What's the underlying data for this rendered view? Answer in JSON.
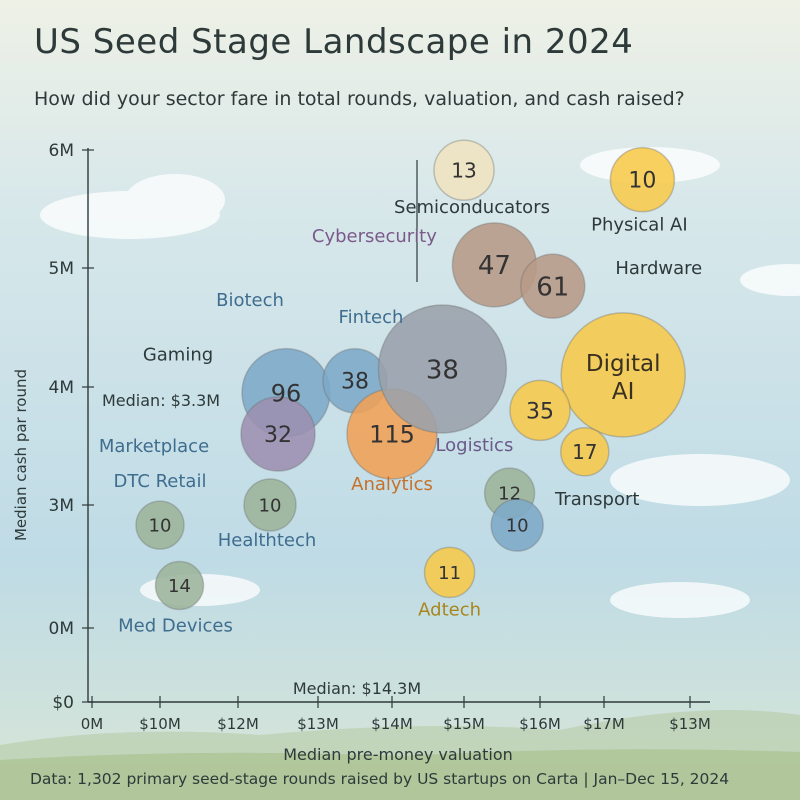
{
  "title": "US Seed Stage Landscape in  2024",
  "subtitle": "How did your sector fare in total rounds, valuation, and cash raised?",
  "footer": "Data: 1,302 primary seed-stage rounds raised by US startups on Carta | Jan–Dec 15, 2024",
  "chart_data": {
    "type": "scatter",
    "xlabel": "Median pre-money valuation",
    "ylabel": "Median cash par round",
    "x_ticks": [
      "0M",
      "$10M",
      "$12M",
      "$13M",
      "$14M",
      "$15M",
      "$16M",
      "$17M",
      "$13M"
    ],
    "y_ticks": [
      "$0",
      "0M",
      "3M",
      "4M",
      "5M",
      "6M"
    ],
    "median_x_label": "Median: $14.3M",
    "median_y_label": "Median: $3.3M",
    "colors": {
      "blue": "#7da8c8",
      "purple": "#9c8fb0",
      "orange": "#f0a055",
      "yellow": "#f7c94a",
      "green": "#9cb49a",
      "brown": "#b79a86",
      "gray": "#9aa0ab",
      "sand": "#efe3bf"
    },
    "points": [
      {
        "name": "Gaming",
        "count": "96",
        "x": 12.6,
        "y": 3.95,
        "color": "blue"
      },
      {
        "name": "Fintech",
        "count": "38",
        "x": 13.5,
        "y": 4.05,
        "color": "blue"
      },
      {
        "name": "Marketplace",
        "count": "32",
        "x": 12.5,
        "y": 3.6,
        "color": "purple"
      },
      {
        "name": "Analytics",
        "count": "115",
        "x": 14.0,
        "y": 3.6,
        "color": "orange"
      },
      {
        "name": "Logistics",
        "count": "38",
        "x": 14.7,
        "y": 4.15,
        "color": "gray"
      },
      {
        "name": "Semiconducators",
        "count": "13",
        "x": 15.0,
        "y": 5.83,
        "color": "sand"
      },
      {
        "name": "Cybersecurity",
        "count": "47",
        "x": 15.4,
        "y": 5.03,
        "color": "brown"
      },
      {
        "name": "Hardware",
        "count": "61",
        "x": 16.2,
        "y": 4.85,
        "color": "brown"
      },
      {
        "name": "Physical AI",
        "count": "10",
        "x": 17.6,
        "y": 5.75,
        "color": "yellow"
      },
      {
        "name": "Digital AI",
        "count": "",
        "x": 17.3,
        "y": 4.1,
        "color": "yellow"
      },
      {
        "name": "",
        "count": "35",
        "x": 16.0,
        "y": 3.8,
        "color": "yellow"
      },
      {
        "name": "",
        "count": "17",
        "x": 16.7,
        "y": 3.45,
        "color": "yellow"
      },
      {
        "name": "",
        "count": "12",
        "x": 15.6,
        "y": 3.1,
        "color": "green"
      },
      {
        "name": "Transport",
        "count": "10",
        "x": 15.7,
        "y": 2.83,
        "color": "blue"
      },
      {
        "name": "Healthtech",
        "count": "10",
        "x": 12.4,
        "y": 3.0,
        "color": "green"
      },
      {
        "name": "DTC Retail",
        "count": "10",
        "x": 10.0,
        "y": 2.83,
        "color": "green"
      },
      {
        "name": "Med Devices",
        "count": "14",
        "x": 10.5,
        "y": 2.32,
        "color": "green"
      },
      {
        "name": "Adtech",
        "count": "11",
        "x": 14.8,
        "y": 2.43,
        "color": "yellow"
      }
    ],
    "extra_labels": [
      "Biotech"
    ]
  }
}
